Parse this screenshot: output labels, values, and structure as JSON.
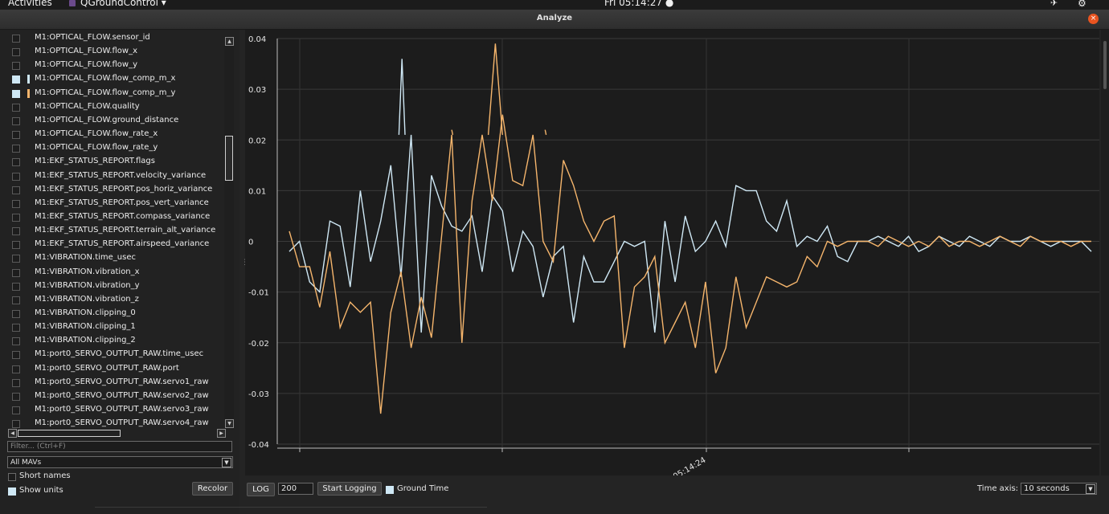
{
  "topbar": {
    "activities": "Activities",
    "app": "QGroundControl ▾",
    "clock": "Fri 05:14:27 ●"
  },
  "window": {
    "title": "Analyze",
    "close_symbol": "×"
  },
  "sidebar": {
    "items": [
      {
        "label": "M1:OPTICAL_FLOW.sensor_id",
        "checked": false
      },
      {
        "label": "M1:OPTICAL_FLOW.flow_x",
        "checked": false
      },
      {
        "label": "M1:OPTICAL_FLOW.flow_y",
        "checked": false
      },
      {
        "label": "M1:OPTICAL_FLOW.flow_comp_m_x",
        "checked": true,
        "color": "#cfe8f5"
      },
      {
        "label": "M1:OPTICAL_FLOW.flow_comp_m_y",
        "checked": true,
        "color": "#f5b56c"
      },
      {
        "label": "M1:OPTICAL_FLOW.quality",
        "checked": false
      },
      {
        "label": "M1:OPTICAL_FLOW.ground_distance",
        "checked": false
      },
      {
        "label": "M1:OPTICAL_FLOW.flow_rate_x",
        "checked": false
      },
      {
        "label": "M1:OPTICAL_FLOW.flow_rate_y",
        "checked": false
      },
      {
        "label": "M1:EKF_STATUS_REPORT.flags",
        "checked": false
      },
      {
        "label": "M1:EKF_STATUS_REPORT.velocity_variance",
        "checked": false
      },
      {
        "label": "M1:EKF_STATUS_REPORT.pos_horiz_variance",
        "checked": false
      },
      {
        "label": "M1:EKF_STATUS_REPORT.pos_vert_variance",
        "checked": false
      },
      {
        "label": "M1:EKF_STATUS_REPORT.compass_variance",
        "checked": false
      },
      {
        "label": "M1:EKF_STATUS_REPORT.terrain_alt_variance",
        "checked": false
      },
      {
        "label": "M1:EKF_STATUS_REPORT.airspeed_variance",
        "checked": false
      },
      {
        "label": "M1:VIBRATION.time_usec",
        "checked": false
      },
      {
        "label": "M1:VIBRATION.vibration_x",
        "checked": false
      },
      {
        "label": "M1:VIBRATION.vibration_y",
        "checked": false
      },
      {
        "label": "M1:VIBRATION.vibration_z",
        "checked": false
      },
      {
        "label": "M1:VIBRATION.clipping_0",
        "checked": false
      },
      {
        "label": "M1:VIBRATION.clipping_1",
        "checked": false
      },
      {
        "label": "M1:VIBRATION.clipping_2",
        "checked": false
      },
      {
        "label": "M1:port0_SERVO_OUTPUT_RAW.time_usec",
        "checked": false
      },
      {
        "label": "M1:port0_SERVO_OUTPUT_RAW.port",
        "checked": false
      },
      {
        "label": "M1:port0_SERVO_OUTPUT_RAW.servo1_raw",
        "checked": false
      },
      {
        "label": "M1:port0_SERVO_OUTPUT_RAW.servo2_raw",
        "checked": false
      },
      {
        "label": "M1:port0_SERVO_OUTPUT_RAW.servo3_raw",
        "checked": false
      },
      {
        "label": "M1:port0_SERVO_OUTPUT_RAW.servo4_raw",
        "checked": false
      }
    ],
    "filter_placeholder": "Filter... (Ctrl+F)",
    "mav_select": "All MAVs",
    "short_names": {
      "label": "Short names",
      "checked": false
    },
    "show_units": {
      "label": "Show units",
      "checked": true
    },
    "recolor_label": "Recolor"
  },
  "toolbar": {
    "log_label": "LOG",
    "log_count": "200",
    "start_logging_label": "Start Logging",
    "ground_time": {
      "label": "Ground Time",
      "checked": true
    },
    "time_axis_label": "Time axis:",
    "time_axis_value": "10 seconds"
  },
  "chart_data": {
    "type": "line",
    "ylim": [
      -0.04,
      0.04
    ],
    "yticks": [
      "0.04",
      "0.03",
      "0.02",
      "0.01",
      "0",
      "-0.01",
      "-0.02",
      "-0.03",
      "-0.04"
    ],
    "xtick_label": "05:14:24",
    "grid": true,
    "series": [
      {
        "name": "M1:OPTICAL_FLOW.flow_comp_m_x",
        "color": "#cfe8f5",
        "points": [
          [
            0,
            -0.002
          ],
          [
            1,
            0
          ],
          [
            2,
            -0.008
          ],
          [
            3,
            -0.01
          ],
          [
            4,
            0.004
          ],
          [
            5,
            0.003
          ],
          [
            6,
            -0.009
          ],
          [
            7,
            0.01
          ],
          [
            8,
            -0.004
          ],
          [
            9,
            0.004
          ],
          [
            10,
            0.015
          ],
          [
            11,
            -0.007
          ],
          [
            12,
            0.021
          ],
          [
            13,
            -0.018
          ],
          [
            14,
            0.013
          ],
          [
            15,
            0.007
          ],
          [
            16,
            0.003
          ],
          [
            17,
            0.002
          ],
          [
            18,
            0.005
          ],
          [
            19,
            -0.006
          ],
          [
            20,
            0.009
          ],
          [
            21,
            0.006
          ],
          [
            22,
            -0.006
          ],
          [
            23,
            0.002
          ],
          [
            24,
            -0.001
          ],
          [
            25,
            -0.011
          ],
          [
            26,
            -0.003
          ],
          [
            27,
            -0.001
          ],
          [
            28,
            -0.016
          ],
          [
            29,
            -0.003
          ],
          [
            30,
            -0.008
          ],
          [
            31,
            -0.008
          ],
          [
            32,
            -0.004
          ],
          [
            33,
            0.0
          ],
          [
            34,
            -0.001
          ],
          [
            35,
            0.0
          ],
          [
            36,
            -0.018
          ],
          [
            37,
            0.004
          ],
          [
            38,
            -0.008
          ],
          [
            39,
            0.005
          ],
          [
            40,
            -0.002
          ],
          [
            41,
            0.0
          ],
          [
            42,
            0.004
          ],
          [
            43,
            -0.001
          ],
          [
            44,
            0.011
          ],
          [
            45,
            0.01
          ],
          [
            46,
            0.01
          ],
          [
            47,
            0.004
          ],
          [
            48,
            0.002
          ],
          [
            49,
            0.008
          ],
          [
            50,
            -0.001
          ],
          [
            51,
            0.001
          ],
          [
            52,
            0.0
          ],
          [
            53,
            0.003
          ],
          [
            54,
            -0.003
          ],
          [
            55,
            -0.004
          ],
          [
            56,
            0.0
          ],
          [
            57,
            0.0
          ],
          [
            58,
            0.001
          ],
          [
            59,
            0.0
          ],
          [
            60,
            -0.001
          ],
          [
            61,
            0.001
          ],
          [
            62,
            -0.002
          ],
          [
            63,
            -0.001
          ],
          [
            64,
            0.001
          ],
          [
            65,
            0.0
          ],
          [
            66,
            -0.001
          ],
          [
            67,
            0.001
          ],
          [
            68,
            0.0
          ],
          [
            69,
            -0.001
          ],
          [
            70,
            0.001
          ],
          [
            71,
            0.0
          ],
          [
            72,
            0.0
          ],
          [
            73,
            0.001
          ],
          [
            74,
            0.0
          ],
          [
            75,
            -0.001
          ],
          [
            76,
            0.0
          ],
          [
            77,
            0.0
          ],
          [
            78,
            0.0
          ],
          [
            79,
            -0.002
          ]
        ],
        "extra_segments": [
          [
            [
              10.8,
              0.021
            ],
            [
              11.1,
              0.036
            ],
            [
              11.4,
              0.021
            ]
          ]
        ]
      },
      {
        "name": "M1:OPTICAL_FLOW.flow_comp_m_y",
        "color": "#f5b56c",
        "points": [
          [
            0,
            0.002
          ],
          [
            1,
            -0.005
          ],
          [
            2,
            -0.005
          ],
          [
            3,
            -0.013
          ],
          [
            4,
            -0.002
          ],
          [
            5,
            -0.017
          ],
          [
            6,
            -0.012
          ],
          [
            7,
            -0.014
          ],
          [
            8,
            -0.012
          ],
          [
            9,
            -0.034
          ],
          [
            10,
            -0.014
          ],
          [
            11,
            -0.006
          ],
          [
            12,
            -0.021
          ],
          [
            13,
            -0.011
          ],
          [
            14,
            -0.019
          ],
          [
            15,
            0.001
          ],
          [
            16,
            0.021
          ],
          [
            17,
            -0.02
          ],
          [
            18,
            0.008
          ],
          [
            19,
            0.021
          ],
          [
            20,
            0.008
          ],
          [
            21,
            0.025
          ],
          [
            22,
            0.012
          ],
          [
            23,
            0.011
          ],
          [
            24,
            0.021
          ],
          [
            25,
            0.0
          ],
          [
            26,
            -0.004
          ],
          [
            27,
            0.016
          ],
          [
            28,
            0.011
          ],
          [
            29,
            0.004
          ],
          [
            30,
            0.0
          ],
          [
            31,
            0.004
          ],
          [
            32,
            0.005
          ],
          [
            33,
            -0.021
          ],
          [
            34,
            -0.009
          ],
          [
            35,
            -0.007
          ],
          [
            36,
            -0.003
          ],
          [
            37,
            -0.02
          ],
          [
            38,
            -0.016
          ],
          [
            39,
            -0.012
          ],
          [
            40,
            -0.021
          ],
          [
            41,
            -0.008
          ],
          [
            42,
            -0.026
          ],
          [
            43,
            -0.021
          ],
          [
            44,
            -0.007
          ],
          [
            45,
            -0.017
          ],
          [
            46,
            -0.012
          ],
          [
            47,
            -0.007
          ],
          [
            48,
            -0.008
          ],
          [
            49,
            -0.009
          ],
          [
            50,
            -0.008
          ],
          [
            51,
            -0.003
          ],
          [
            52,
            -0.005
          ],
          [
            53,
            0.0
          ],
          [
            54,
            -0.001
          ],
          [
            55,
            0.0
          ],
          [
            56,
            0.0
          ],
          [
            57,
            0.0
          ],
          [
            58,
            -0.001
          ],
          [
            59,
            0.001
          ],
          [
            60,
            0.0
          ],
          [
            61,
            -0.001
          ],
          [
            62,
            0.0
          ],
          [
            63,
            -0.001
          ],
          [
            64,
            0.001
          ],
          [
            65,
            -0.001
          ],
          [
            66,
            0.0
          ],
          [
            67,
            0.0
          ],
          [
            68,
            -0.001
          ],
          [
            69,
            0.0
          ],
          [
            70,
            0.001
          ],
          [
            71,
            0.0
          ],
          [
            72,
            -0.001
          ],
          [
            73,
            0.001
          ],
          [
            74,
            0.0
          ],
          [
            75,
            0.0
          ],
          [
            76,
            0.0
          ],
          [
            77,
            -0.001
          ],
          [
            78,
            0.0
          ],
          [
            79,
            0.0
          ]
        ],
        "extra_segments": [
          [
            [
              19.6,
              0.021
            ],
            [
              20.3,
              0.039
            ],
            [
              21.0,
              0.021
            ]
          ],
          [
            [
              16.0,
              0.022
            ],
            [
              16.1,
              0.021
            ]
          ],
          [
            [
              25.2,
              0.022
            ],
            [
              25.3,
              0.021
            ]
          ]
        ]
      }
    ]
  }
}
